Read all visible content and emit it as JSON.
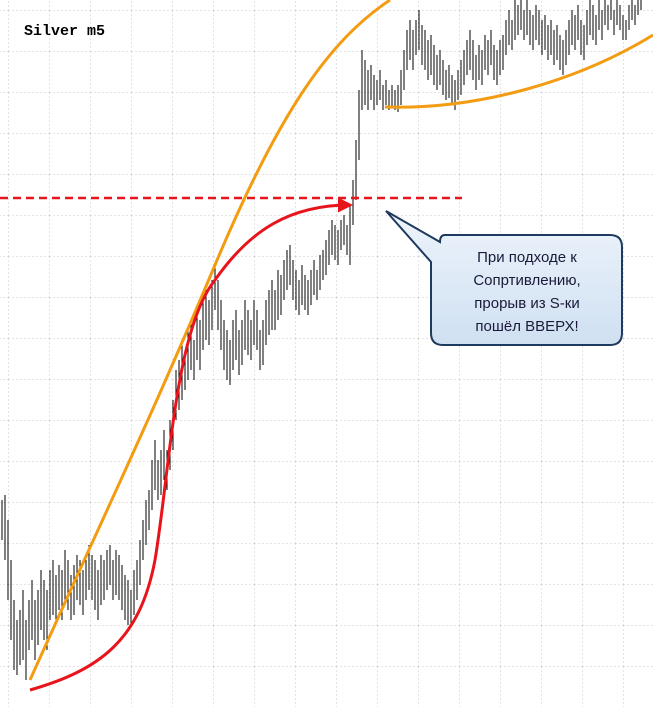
{
  "title": "Silver m5",
  "callout": {
    "lines": [
      "При подходе к",
      "Сопртивлению,",
      "прорыв из S-ки",
      "пошёл ВВЕРХ!"
    ]
  }
}
